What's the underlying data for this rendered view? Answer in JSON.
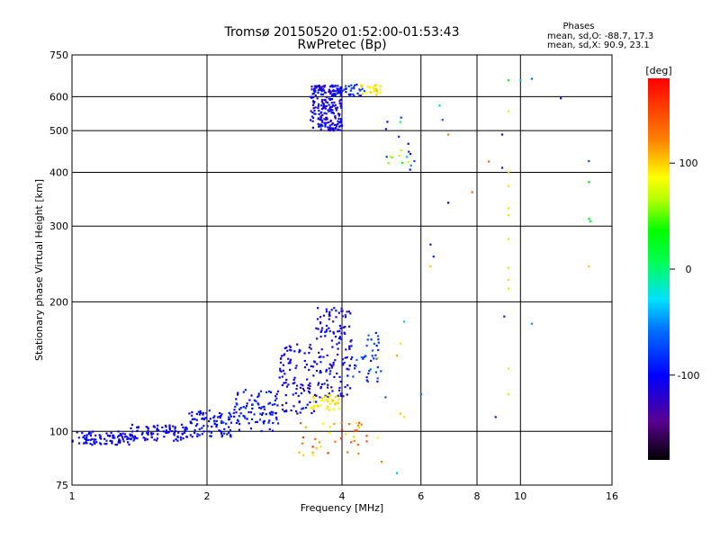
{
  "chart_data": {
    "type": "scatter",
    "title": "Tromsø 20150520 01:52:00-01:53:43",
    "subtitle": "RwPretec (Bp)",
    "info": {
      "header": "Phases",
      "line1": "mean, sd,O: -88.7, 17.3",
      "line2": "mean, sd,X:  90.9, 23.1"
    },
    "xlabel": "Frequency [MHz]",
    "ylabel": "Stationary phase Virtual Height [km]",
    "xscale": "log",
    "yscale": "log",
    "xlim": [
      1,
      16
    ],
    "ylim": [
      75,
      750
    ],
    "xticks": [
      1,
      2,
      4,
      6,
      8,
      10,
      16
    ],
    "xtick_labels": [
      "1",
      "2",
      "4",
      "6",
      "8",
      "10",
      "16"
    ],
    "yticks": [
      75,
      100,
      200,
      300,
      400,
      500,
      600,
      750
    ],
    "ytick_labels": [
      "75",
      "100",
      "200",
      "300",
      "400",
      "500",
      "600",
      "750"
    ],
    "grid": true,
    "colorbar": {
      "label": "[deg]",
      "range": [
        -180,
        180
      ],
      "ticks": [
        100,
        0,
        -100
      ],
      "tick_labels": [
        "100",
        "0",
        "-100"
      ]
    },
    "clusters": [
      {
        "x0": 1.0,
        "x1": 1.35,
        "y0": 93,
        "y1": 100,
        "n": 90,
        "c0": -115,
        "c1": -90
      },
      {
        "x0": 1.35,
        "x1": 1.8,
        "y0": 95,
        "y1": 104,
        "n": 90,
        "c0": -115,
        "c1": -90
      },
      {
        "x0": 1.8,
        "x1": 2.3,
        "y0": 97,
        "y1": 112,
        "n": 90,
        "c0": -110,
        "c1": -85
      },
      {
        "x0": 2.3,
        "x1": 2.9,
        "y0": 100,
        "y1": 125,
        "n": 90,
        "c0": -110,
        "c1": -80
      },
      {
        "x0": 2.9,
        "x1": 3.5,
        "y0": 110,
        "y1": 160,
        "n": 100,
        "c0": -120,
        "c1": -90
      },
      {
        "x0": 3.5,
        "x1": 4.2,
        "y0": 120,
        "y1": 195,
        "n": 140,
        "c0": -125,
        "c1": -85
      },
      {
        "x0": 4.2,
        "x1": 4.9,
        "y0": 130,
        "y1": 170,
        "n": 40,
        "c0": -100,
        "c1": -60
      },
      {
        "x0": 3.4,
        "x1": 4.0,
        "y0": 112,
        "y1": 122,
        "n": 40,
        "c0": 95,
        "c1": 120
      },
      {
        "x0": 3.2,
        "x1": 4.8,
        "y0": 88,
        "y1": 105,
        "n": 40,
        "c0": 100,
        "c1": 170
      },
      {
        "x0": 3.4,
        "x1": 4.0,
        "y0": 500,
        "y1": 640,
        "n": 240,
        "c0": -125,
        "c1": -85
      },
      {
        "x0": 4.0,
        "x1": 4.5,
        "y0": 600,
        "y1": 640,
        "n": 30,
        "c0": -100,
        "c1": -70
      },
      {
        "x0": 4.4,
        "x1": 4.9,
        "y0": 605,
        "y1": 640,
        "n": 25,
        "c0": 95,
        "c1": 120
      },
      {
        "x0": 5.0,
        "x1": 5.8,
        "y0": 400,
        "y1": 540,
        "n": 20,
        "c0": -120,
        "c1": 90
      }
    ],
    "points": [
      {
        "x": 4.8,
        "y": 148,
        "c": 120
      },
      {
        "x": 5.3,
        "y": 150,
        "c": 130
      },
      {
        "x": 5.4,
        "y": 160,
        "c": 110
      },
      {
        "x": 5.0,
        "y": 120,
        "c": -70
      },
      {
        "x": 5.5,
        "y": 180,
        "c": -40
      },
      {
        "x": 5.4,
        "y": 110,
        "c": 120
      },
      {
        "x": 5.5,
        "y": 108,
        "c": 110
      },
      {
        "x": 5.3,
        "y": 80,
        "c": -40
      },
      {
        "x": 4.9,
        "y": 85,
        "c": 140
      },
      {
        "x": 6.0,
        "y": 122,
        "c": -60
      },
      {
        "x": 6.3,
        "y": 272,
        "c": -90
      },
      {
        "x": 6.4,
        "y": 255,
        "c": -90
      },
      {
        "x": 6.3,
        "y": 242,
        "c": 120
      },
      {
        "x": 6.6,
        "y": 572,
        "c": -40
      },
      {
        "x": 6.7,
        "y": 530,
        "c": -70
      },
      {
        "x": 6.9,
        "y": 490,
        "c": 140
      },
      {
        "x": 6.9,
        "y": 340,
        "c": -100
      },
      {
        "x": 7.8,
        "y": 360,
        "c": 150
      },
      {
        "x": 8.5,
        "y": 424,
        "c": 150
      },
      {
        "x": 8.8,
        "y": 108,
        "c": -130
      },
      {
        "x": 9.1,
        "y": 490,
        "c": -110
      },
      {
        "x": 9.1,
        "y": 410,
        "c": -120
      },
      {
        "x": 9.2,
        "y": 185,
        "c": -90
      },
      {
        "x": 9.4,
        "y": 655,
        "c": 40
      },
      {
        "x": 9.4,
        "y": 555,
        "c": 110
      },
      {
        "x": 9.4,
        "y": 400,
        "c": 120
      },
      {
        "x": 9.4,
        "y": 372,
        "c": 110
      },
      {
        "x": 9.4,
        "y": 330,
        "c": 110
      },
      {
        "x": 9.4,
        "y": 318,
        "c": 110
      },
      {
        "x": 9.4,
        "y": 280,
        "c": 110
      },
      {
        "x": 9.4,
        "y": 240,
        "c": 110
      },
      {
        "x": 9.4,
        "y": 225,
        "c": 110
      },
      {
        "x": 9.4,
        "y": 215,
        "c": 110
      },
      {
        "x": 9.4,
        "y": 140,
        "c": 110
      },
      {
        "x": 9.4,
        "y": 122,
        "c": 110
      },
      {
        "x": 10.0,
        "y": 655,
        "c": -40
      },
      {
        "x": 10.6,
        "y": 660,
        "c": -60
      },
      {
        "x": 10.6,
        "y": 178,
        "c": -50
      },
      {
        "x": 12.3,
        "y": 595,
        "c": -110
      },
      {
        "x": 14.2,
        "y": 425,
        "c": -70
      },
      {
        "x": 14.2,
        "y": 380,
        "c": 40
      },
      {
        "x": 14.2,
        "y": 312,
        "c": 40
      },
      {
        "x": 14.3,
        "y": 308,
        "c": 20
      },
      {
        "x": 14.2,
        "y": 242,
        "c": 120
      }
    ]
  }
}
